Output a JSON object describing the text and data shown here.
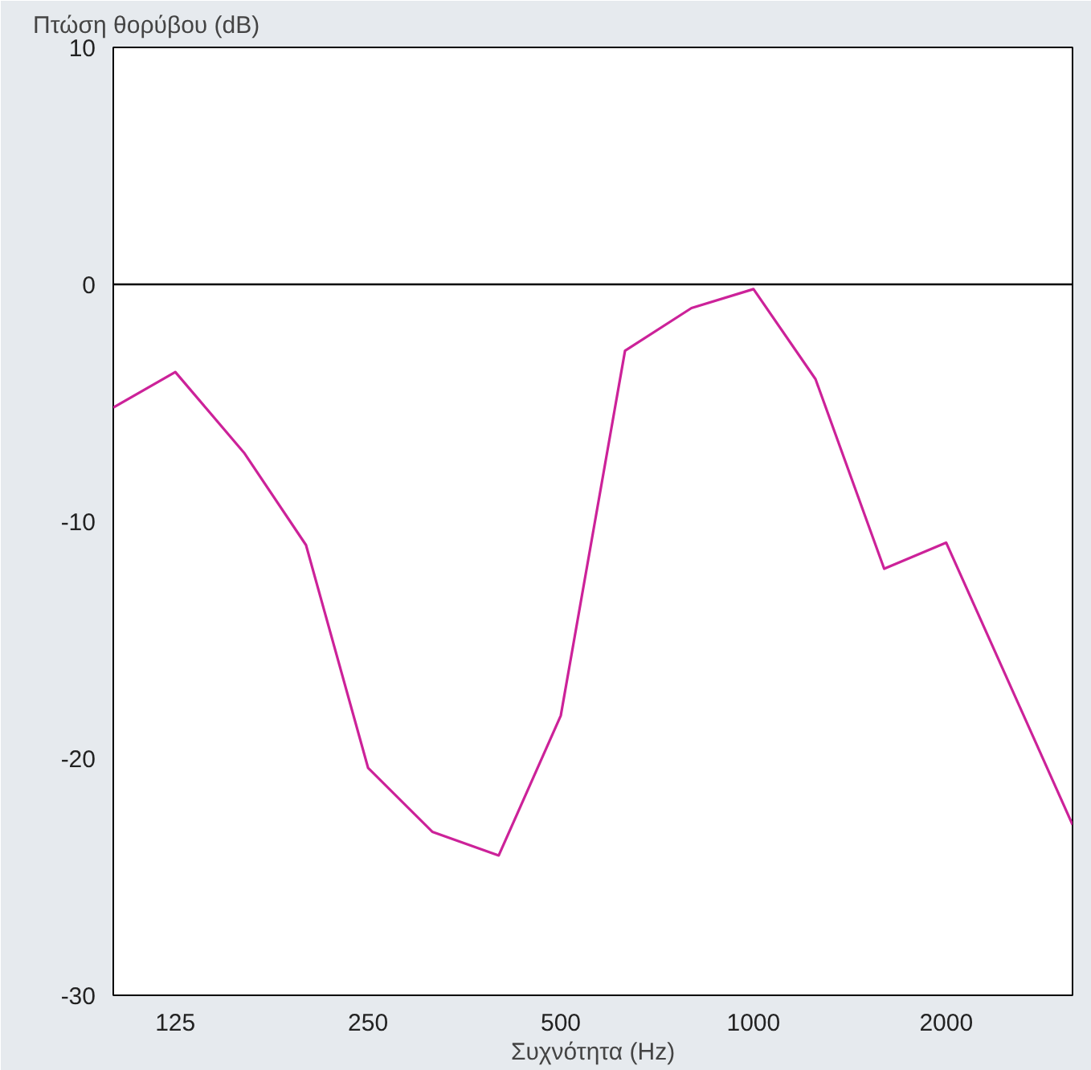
{
  "chart_data": {
    "type": "line",
    "ylabel": "Πτώση θορύβου (dB)",
    "xlabel": "Συχνότητα (Hz)",
    "x": [
      100,
      125,
      160,
      200,
      250,
      315,
      400,
      500,
      630,
      800,
      1000,
      1250,
      1600,
      2000,
      3150
    ],
    "series": [
      {
        "color": "#cc2299",
        "values": [
          -5.2,
          -3.7,
          -7.1,
          -11,
          -20.4,
          -23.1,
          -24.1,
          -18.2,
          -2.8,
          -1.0,
          -0.2,
          -4.0,
          -12,
          -10.9,
          -22.8
        ]
      }
    ],
    "log": "x",
    "xlim": [
      100,
      3150
    ],
    "xticks": [
      125,
      250,
      500,
      1000,
      2000
    ],
    "ylim": [
      -30,
      10
    ],
    "yticks": [
      -30,
      -20,
      -10,
      0,
      10
    ],
    "grid": false,
    "marker": "none",
    "ref_lines": [
      {
        "axis": "y",
        "value": 0,
        "color": "#000000"
      }
    ]
  }
}
